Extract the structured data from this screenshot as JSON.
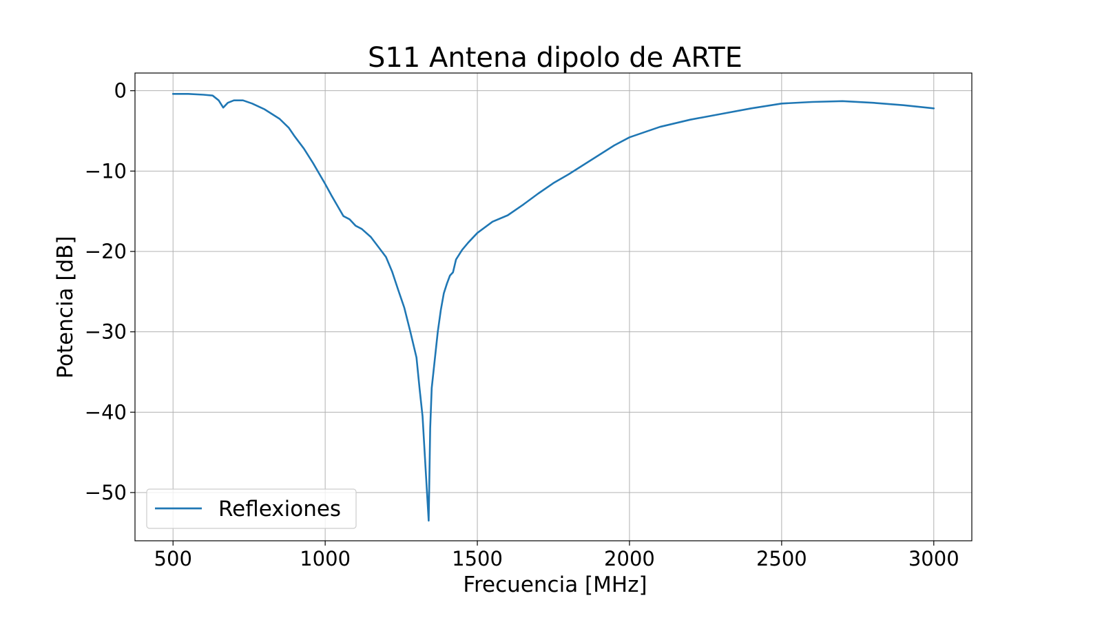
{
  "chart_data": {
    "type": "line",
    "title": "S11 Antena dipolo de ARTE",
    "xlabel": "Frecuencia [MHz]",
    "ylabel": "Potencia [dB]",
    "xlim": [
      375,
      3125
    ],
    "ylim": [
      -56,
      2.2
    ],
    "x_ticks": [
      500,
      1000,
      1500,
      2000,
      2500,
      3000
    ],
    "x_tick_labels": [
      "500",
      "1000",
      "1500",
      "2000",
      "2500",
      "3000"
    ],
    "y_ticks": [
      0,
      -10,
      -20,
      -30,
      -40,
      -50
    ],
    "y_tick_labels": [
      "0",
      "−10",
      "−20",
      "−30",
      "−40",
      "−50"
    ],
    "grid": true,
    "legend_position": "lower-left",
    "series": [
      {
        "name": "Reflexiones",
        "color": "#1f77b4",
        "x": [
          500,
          550,
          600,
          630,
          650,
          665,
          680,
          700,
          730,
          760,
          800,
          850,
          880,
          900,
          930,
          960,
          1000,
          1020,
          1040,
          1060,
          1080,
          1100,
          1120,
          1150,
          1180,
          1200,
          1220,
          1240,
          1260,
          1280,
          1300,
          1310,
          1320,
          1330,
          1340,
          1345,
          1350,
          1360,
          1370,
          1380,
          1390,
          1400,
          1410,
          1420,
          1430,
          1450,
          1470,
          1500,
          1550,
          1600,
          1650,
          1700,
          1750,
          1800,
          1850,
          1900,
          1950,
          2000,
          2100,
          2200,
          2300,
          2400,
          2500,
          2600,
          2700,
          2800,
          2900,
          3000
        ],
        "y": [
          -0.4,
          -0.4,
          -0.5,
          -0.6,
          -1.2,
          -2.1,
          -1.5,
          -1.2,
          -1.2,
          -1.6,
          -2.3,
          -3.5,
          -4.6,
          -5.7,
          -7.2,
          -9.0,
          -11.6,
          -13.0,
          -14.3,
          -15.6,
          -16.0,
          -16.8,
          -17.2,
          -18.2,
          -19.7,
          -20.7,
          -22.5,
          -24.8,
          -27.0,
          -30.0,
          -33.2,
          -37.0,
          -40.5,
          -47.0,
          -53.5,
          -42.0,
          -37.0,
          -33.5,
          -30.0,
          -27.3,
          -25.2,
          -24.0,
          -23.0,
          -22.6,
          -21.0,
          -19.8,
          -18.9,
          -17.7,
          -16.3,
          -15.5,
          -14.2,
          -12.8,
          -11.5,
          -10.4,
          -9.2,
          -8.0,
          -6.8,
          -5.8,
          -4.5,
          -3.6,
          -2.9,
          -2.2,
          -1.6,
          -1.4,
          -1.3,
          -1.5,
          -1.8,
          -2.2
        ]
      }
    ]
  }
}
